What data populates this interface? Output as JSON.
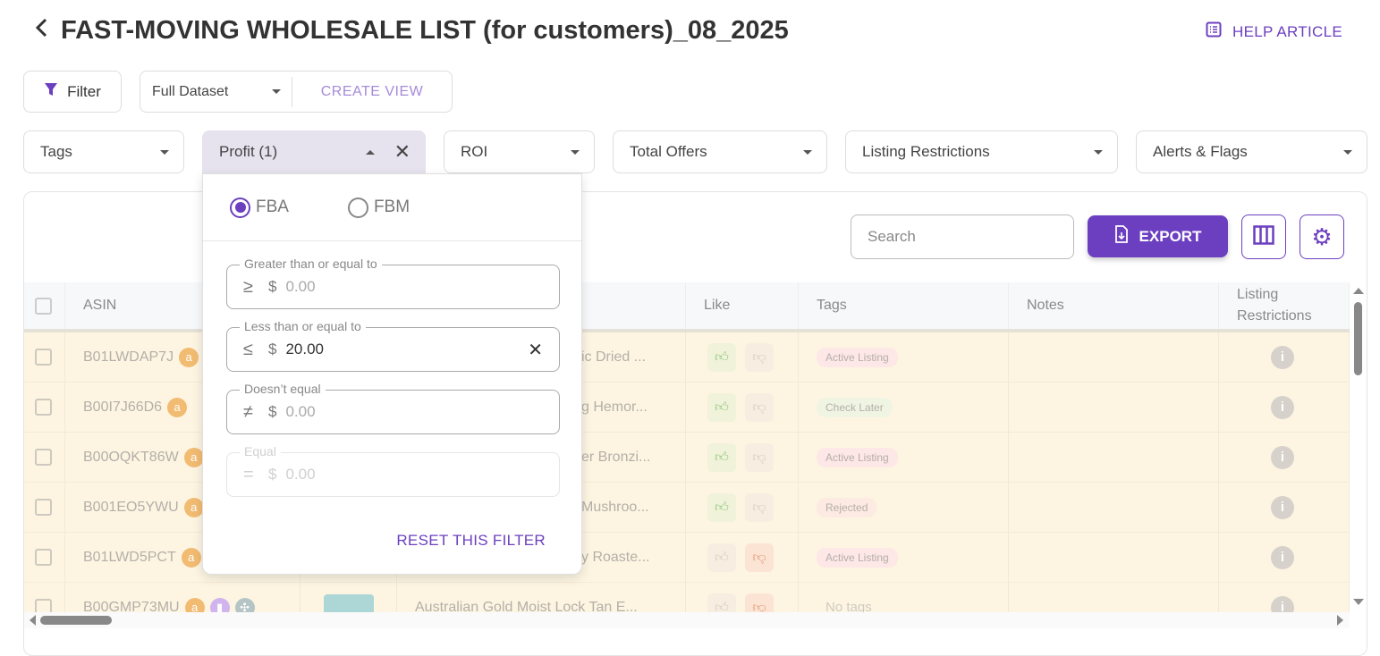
{
  "header": {
    "title": "FAST-MOVING WHOLESALE LIST (for customers)_08_2025",
    "help_label": "HELP ARTICLE"
  },
  "toolbar": {
    "filter_label": "Filter",
    "view_value": "Full Dataset",
    "create_view_label": "CREATE VIEW"
  },
  "filters": [
    {
      "label": "Tags"
    },
    {
      "label": "Profit (1)",
      "active": true
    },
    {
      "label": "ROI"
    },
    {
      "label": "Total Offers"
    },
    {
      "label": "Listing Restrictions"
    },
    {
      "label": "Alerts & Flags"
    }
  ],
  "table_toolbar": {
    "search_placeholder": "Search",
    "export_label": "EXPORT"
  },
  "columns": [
    "ASIN",
    "",
    "",
    "Like",
    "Tags",
    "Notes",
    "Listing Restrictions"
  ],
  "rows": [
    {
      "asin": "B01LWDAP7J",
      "title": "ic Dried ...",
      "like": "up",
      "tag": "Active Listing",
      "tag_color": "#fde3e3"
    },
    {
      "asin": "B00I7J66D6",
      "title": "g Hemor...",
      "like": "up",
      "tag": "Check Later",
      "tag_color": "#eef4df"
    },
    {
      "asin": "B00OQKT86W",
      "title": "er Bronzi...",
      "like": "up",
      "tag": "Active Listing",
      "tag_color": "#fde3e3"
    },
    {
      "asin": "B001EO5YWU",
      "title": "Mushroo...",
      "like": "up",
      "tag": "Rejected",
      "tag_color": "#fde7df"
    },
    {
      "asin": "B01LWD5PCT",
      "title": "y Roaste...",
      "like": "down",
      "tag": "Active Listing",
      "tag_color": "#fde3e3"
    },
    {
      "asin": "B00GMP73MU",
      "title": "Australian Gold Moist Lock Tan E...",
      "like": "down",
      "tag": "No tags",
      "tag_color": ""
    }
  ],
  "profit_popup": {
    "options": [
      {
        "label": "FBA",
        "selected": true
      },
      {
        "label": "FBM",
        "selected": false
      }
    ],
    "fields": [
      {
        "label": "Greater than or equal to",
        "symbol": "≥",
        "currency": "$",
        "value": "",
        "placeholder": "0.00"
      },
      {
        "label": "Less than or equal to",
        "symbol": "≤",
        "currency": "$",
        "value": "20.00",
        "placeholder": "0.00"
      },
      {
        "label": "Doesn’t equal",
        "symbol": "≠",
        "currency": "$",
        "value": "",
        "placeholder": "0.00"
      },
      {
        "label": "Equal",
        "symbol": "=",
        "currency": "$",
        "value": "",
        "placeholder": "0.00",
        "disabled": true
      }
    ],
    "reset_label": "RESET THIS FILTER"
  },
  "colors": {
    "accent": "#6c3fc0",
    "row_highlight": "#fdf4de",
    "like": "#7cbf6a",
    "dislike": "#e08a6a"
  }
}
